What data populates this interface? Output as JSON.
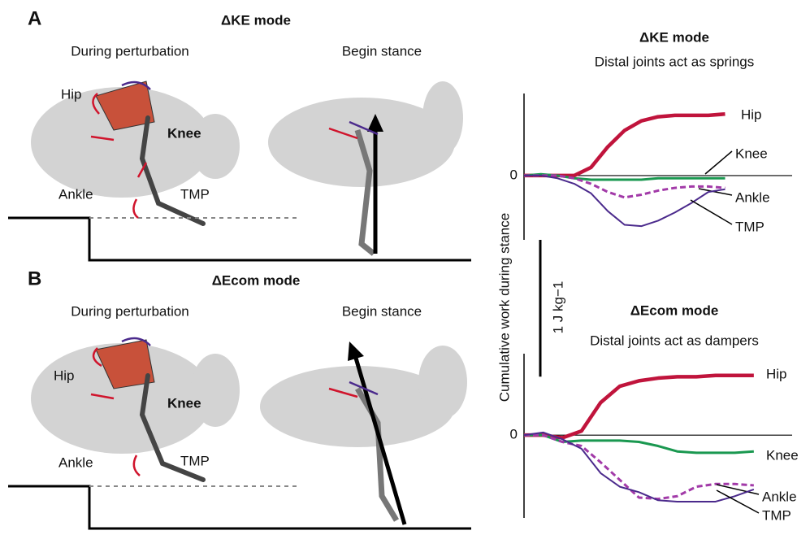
{
  "panels": [
    {
      "letter": "A",
      "mode": "ΔKE mode",
      "left_title": "During perturbation",
      "right_title": "Begin stance",
      "joints": [
        "Hip",
        "Knee",
        "Ankle",
        "TMP"
      ]
    },
    {
      "letter": "B",
      "mode": "ΔEcom mode",
      "left_title": "During perturbation",
      "right_title": "Begin stance",
      "joints": [
        "Hip",
        "Knee",
        "Ankle",
        "TMP"
      ]
    }
  ],
  "y_axis_label": "Cumulative work during stance",
  "scale_bar": {
    "label": "1 J kg−1",
    "value": 1
  },
  "chart_data": [
    {
      "type": "line",
      "title": "ΔKE mode",
      "subtitle": "Distal joints act as springs",
      "xlim": [
        0,
        16
      ],
      "ylim": [
        -0.47,
        0.6
      ],
      "yticks": [
        0
      ],
      "x": [
        0,
        1,
        2,
        3,
        4,
        5,
        6,
        7,
        8,
        9,
        10,
        11,
        12
      ],
      "series": [
        {
          "name": "Hip",
          "color": "#c0143c",
          "values": [
            0,
            0,
            0,
            0,
            0.06,
            0.21,
            0.33,
            0.4,
            0.43,
            0.44,
            0.44,
            0.44,
            0.45
          ]
        },
        {
          "name": "Knee",
          "color": "#1a9850",
          "values": [
            0,
            0.01,
            0,
            -0.02,
            -0.03,
            -0.03,
            -0.03,
            -0.03,
            -0.02,
            -0.02,
            -0.02,
            -0.02,
            -0.02
          ]
        },
        {
          "name": "Ankle",
          "color": "#a23aa8",
          "dash": true,
          "values": [
            0,
            0,
            0,
            -0.02,
            -0.06,
            -0.12,
            -0.16,
            -0.14,
            -0.11,
            -0.09,
            -0.08,
            -0.08,
            -0.09
          ]
        },
        {
          "name": "TMP",
          "color": "#4b2a8c",
          "values": [
            0,
            0,
            -0.02,
            -0.06,
            -0.13,
            -0.26,
            -0.36,
            -0.37,
            -0.33,
            -0.27,
            -0.2,
            -0.12,
            -0.1
          ]
        }
      ]
    },
    {
      "type": "line",
      "title": "ΔEcom mode",
      "subtitle": "Distal joints act as dampers",
      "xlim": [
        0,
        14
      ],
      "ylim": [
        -0.61,
        0.6
      ],
      "yticks": [
        0
      ],
      "x": [
        0,
        1,
        2,
        3,
        4,
        5,
        6,
        7,
        8,
        9,
        10,
        11,
        12
      ],
      "series": [
        {
          "name": "Hip",
          "color": "#c0143c",
          "values": [
            0,
            0,
            -0.02,
            0.03,
            0.24,
            0.36,
            0.4,
            0.42,
            0.43,
            0.43,
            0.44,
            0.44,
            0.44
          ]
        },
        {
          "name": "Knee",
          "color": "#1a9850",
          "values": [
            0,
            0,
            -0.05,
            -0.04,
            -0.04,
            -0.04,
            -0.05,
            -0.08,
            -0.12,
            -0.13,
            -0.13,
            -0.13,
            -0.12
          ]
        },
        {
          "name": "Ankle",
          "color": "#a23aa8",
          "dash": true,
          "values": [
            0,
            0,
            -0.05,
            -0.08,
            -0.2,
            -0.33,
            -0.46,
            -0.47,
            -0.45,
            -0.38,
            -0.36,
            -0.36,
            -0.37
          ]
        },
        {
          "name": "TMP",
          "color": "#4b2a8c",
          "values": [
            0,
            0.02,
            -0.03,
            -0.1,
            -0.28,
            -0.38,
            -0.42,
            -0.48,
            -0.49,
            -0.49,
            -0.49,
            -0.45,
            -0.4
          ]
        }
      ]
    }
  ]
}
